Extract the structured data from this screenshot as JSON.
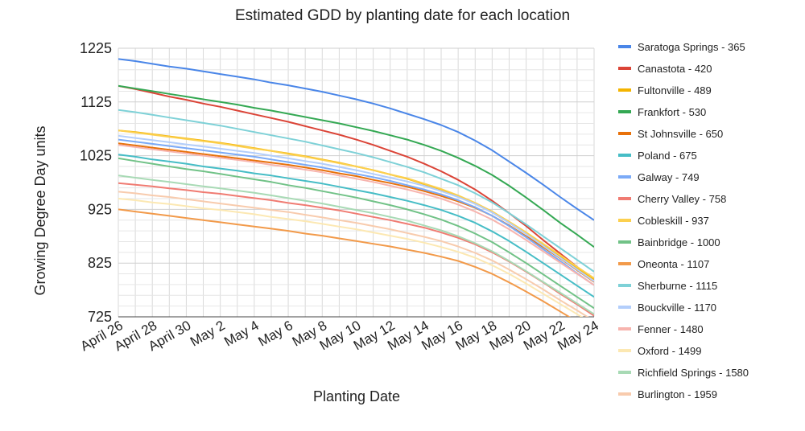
{
  "chart_data": {
    "type": "line",
    "title": "Estimated GDD by planting date for each location",
    "xlabel": "Planting Date",
    "ylabel": "Growing Degree Day units",
    "ylim": [
      725,
      1225
    ],
    "yticks": [
      725,
      825,
      925,
      1025,
      1125,
      1225
    ],
    "grid": true,
    "legend_position": "right",
    "x": [
      "April 26",
      "April 27",
      "April 28",
      "April 29",
      "April 30",
      "May 1",
      "May 2",
      "May 3",
      "May 4",
      "May 5",
      "May 6",
      "May 7",
      "May 8",
      "May 9",
      "May 10",
      "May 11",
      "May 12",
      "May 13",
      "May 14",
      "May 15",
      "May 16",
      "May 17",
      "May 18",
      "May 19",
      "May 20",
      "May 21",
      "May 22",
      "May 23",
      "May 24"
    ],
    "x_tick_labels": [
      "April 26",
      "April 28",
      "April 30",
      "May 2",
      "May 4",
      "May 6",
      "May 8",
      "May 10",
      "May 12",
      "May 14",
      "May 16",
      "May 18",
      "May 20",
      "May 22",
      "May 24"
    ],
    "series": [
      {
        "name": "Saratoga Springs - 365",
        "color": "#4a86e8",
        "values": [
          1205,
          1201,
          1196,
          1191,
          1187,
          1182,
          1177,
          1172,
          1167,
          1161,
          1156,
          1150,
          1144,
          1137,
          1130,
          1122,
          1113,
          1103,
          1093,
          1082,
          1069,
          1053,
          1035,
          1014,
          993,
          971,
          948,
          926,
          905
        ]
      },
      {
        "name": "Canastota - 420",
        "color": "#db4437",
        "values": [
          1155,
          1149,
          1142,
          1135,
          1129,
          1122,
          1116,
          1109,
          1102,
          1095,
          1088,
          1080,
          1072,
          1064,
          1055,
          1045,
          1034,
          1023,
          1010,
          996,
          980,
          962,
          941,
          918,
          894,
          868,
          843,
          818,
          795
        ]
      },
      {
        "name": "Fultonville - 489",
        "color": "#f4b400",
        "values": [
          1072,
          1069,
          1065,
          1061,
          1057,
          1053,
          1049,
          1044,
          1039,
          1034,
          1029,
          1024,
          1018,
          1012,
          1005,
          998,
          990,
          982,
          972,
          962,
          950,
          937,
          921,
          902,
          882,
          860,
          838,
          816,
          795
        ]
      },
      {
        "name": "Frankfort - 530",
        "color": "#34a853",
        "values": [
          1155,
          1150,
          1145,
          1140,
          1135,
          1130,
          1125,
          1120,
          1114,
          1109,
          1103,
          1097,
          1091,
          1085,
          1078,
          1071,
          1063,
          1055,
          1045,
          1034,
          1021,
          1006,
          989,
          969,
          947,
          924,
          900,
          878,
          855
        ]
      },
      {
        "name": "St Johnsville - 650",
        "color": "#e8710a",
        "values": [
          1048,
          1044,
          1040,
          1036,
          1032,
          1028,
          1024,
          1020,
          1016,
          1012,
          1008,
          1003,
          998,
          992,
          987,
          980,
          974,
          967,
          959,
          950,
          940,
          928,
          913,
          895,
          875,
          855,
          834,
          812,
          790
        ]
      },
      {
        "name": "Poland - 675",
        "color": "#46bdc6",
        "values": [
          1027,
          1023,
          1018,
          1014,
          1010,
          1005,
          1001,
          997,
          992,
          988,
          983,
          978,
          973,
          967,
          961,
          955,
          948,
          941,
          933,
          924,
          913,
          900,
          884,
          866,
          846,
          825,
          804,
          783,
          762
        ]
      },
      {
        "name": "Galway - 749",
        "color": "#7baaf7",
        "values": [
          1055,
          1051,
          1047,
          1043,
          1039,
          1035,
          1031,
          1027,
          1023,
          1018,
          1013,
          1008,
          1003,
          997,
          991,
          985,
          978,
          970,
          962,
          953,
          942,
          929,
          913,
          894,
          873,
          851,
          829,
          806,
          784
        ]
      },
      {
        "name": "Cherry Valley - 758",
        "color": "#f07b72",
        "values": [
          974,
          971,
          968,
          964,
          961,
          957,
          954,
          950,
          946,
          942,
          937,
          933,
          928,
          923,
          917,
          911,
          905,
          898,
          891,
          882,
          872,
          860,
          845,
          828,
          809,
          789,
          768,
          748,
          727
        ]
      },
      {
        "name": "Cobleskill - 937",
        "color": "#fcd04f",
        "values": [
          1072,
          1068,
          1064,
          1060,
          1056,
          1052,
          1048,
          1043,
          1038,
          1034,
          1028,
          1023,
          1017,
          1011,
          1005,
          998,
          990,
          983,
          973,
          963,
          951,
          937,
          921,
          902,
          882,
          861,
          840,
          818,
          797
        ]
      },
      {
        "name": "Bainbridge - 1000",
        "color": "#71c287",
        "values": [
          1020,
          1015,
          1010,
          1005,
          1000,
          996,
          991,
          986,
          981,
          976,
          970,
          965,
          959,
          953,
          947,
          940,
          933,
          925,
          916,
          906,
          894,
          880,
          864,
          845,
          825,
          804,
          783,
          762,
          741
        ]
      },
      {
        "name": "Oneonta - 1107",
        "color": "#f29a4a",
        "values": [
          925,
          921,
          917,
          913,
          909,
          905,
          901,
          897,
          893,
          889,
          885,
          880,
          876,
          871,
          866,
          861,
          856,
          850,
          844,
          837,
          829,
          818,
          805,
          789,
          772,
          754,
          735,
          716,
          697
        ]
      },
      {
        "name": "Sherburne - 1115",
        "color": "#7ed1d7",
        "values": [
          1110,
          1106,
          1101,
          1096,
          1091,
          1086,
          1081,
          1075,
          1069,
          1063,
          1057,
          1051,
          1044,
          1037,
          1030,
          1022,
          1013,
          1004,
          994,
          982,
          970,
          955,
          938,
          918,
          897,
          875,
          853,
          831,
          809
        ]
      },
      {
        "name": "Bouckville - 1170",
        "color": "#b3cefb",
        "values": [
          1062,
          1058,
          1054,
          1050,
          1046,
          1042,
          1038,
          1034,
          1030,
          1025,
          1020,
          1015,
          1010,
          1004,
          998,
          991,
          984,
          977,
          969,
          959,
          948,
          935,
          919,
          900,
          879,
          857,
          835,
          813,
          791
        ]
      },
      {
        "name": "Fenner - 1480",
        "color": "#f7b4ae",
        "values": [
          1045,
          1041,
          1037,
          1033,
          1029,
          1025,
          1021,
          1017,
          1013,
          1008,
          1004,
          999,
          994,
          988,
          982,
          976,
          969,
          962,
          954,
          945,
          934,
          921,
          906,
          888,
          868,
          847,
          826,
          805,
          784
        ]
      },
      {
        "name": "Oxford - 1499",
        "color": "#fce8b2",
        "values": [
          945,
          942,
          938,
          935,
          931,
          927,
          924,
          920,
          916,
          911,
          907,
          903,
          898,
          893,
          888,
          882,
          876,
          870,
          863,
          855,
          846,
          835,
          821,
          805,
          787,
          768,
          749,
          730,
          711
        ]
      },
      {
        "name": "Richfield Springs - 1580",
        "color": "#a8dab5",
        "values": [
          988,
          984,
          980,
          976,
          972,
          968,
          964,
          960,
          956,
          951,
          946,
          941,
          936,
          930,
          924,
          918,
          911,
          904,
          895,
          886,
          875,
          862,
          847,
          829,
          810,
          790,
          770,
          750,
          730
        ]
      },
      {
        "name": "Burlington - 1959",
        "color": "#f8cbad",
        "values": [
          958,
          955,
          951,
          948,
          944,
          940,
          936,
          932,
          928,
          924,
          920,
          915,
          910,
          905,
          900,
          894,
          888,
          881,
          874,
          866,
          856,
          844,
          830,
          813,
          795,
          776,
          756,
          737,
          717
        ]
      }
    ]
  }
}
